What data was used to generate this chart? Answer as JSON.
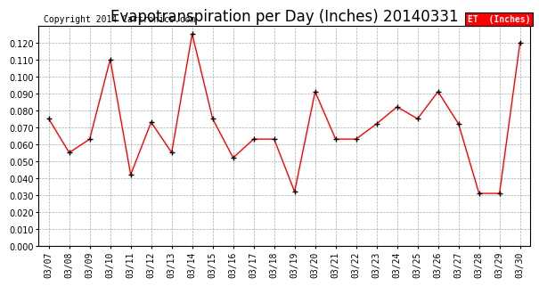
{
  "title": "Evapotranspiration per Day (Inches) 20140331",
  "copyright": "Copyright 2014 Cartronics.com",
  "legend_label": "ET  (Inches)",
  "dates": [
    "03/07",
    "03/08",
    "03/09",
    "03/10",
    "03/11",
    "03/12",
    "03/13",
    "03/14",
    "03/15",
    "03/16",
    "03/17",
    "03/18",
    "03/19",
    "03/20",
    "03/21",
    "03/22",
    "03/23",
    "03/24",
    "03/25",
    "03/26",
    "03/27",
    "03/28",
    "03/29",
    "03/30"
  ],
  "values": [
    0.075,
    0.055,
    0.063,
    0.11,
    0.042,
    0.073,
    0.055,
    0.125,
    0.075,
    0.052,
    0.063,
    0.063,
    0.032,
    0.091,
    0.063,
    0.063,
    0.072,
    0.082,
    0.075,
    0.091,
    0.072,
    0.031,
    0.031,
    0.12
  ],
  "ylim": [
    0.0,
    0.13
  ],
  "yticks": [
    0.0,
    0.01,
    0.02,
    0.03,
    0.04,
    0.05,
    0.06,
    0.07,
    0.08,
    0.09,
    0.1,
    0.11,
    0.12
  ],
  "line_color": "red",
  "marker_color": "black",
  "bg_color": "#ffffff",
  "grid_color": "#aaaaaa",
  "legend_bg": "red",
  "legend_text_color": "white",
  "title_fontsize": 12,
  "copyright_fontsize": 7,
  "tick_fontsize": 7
}
